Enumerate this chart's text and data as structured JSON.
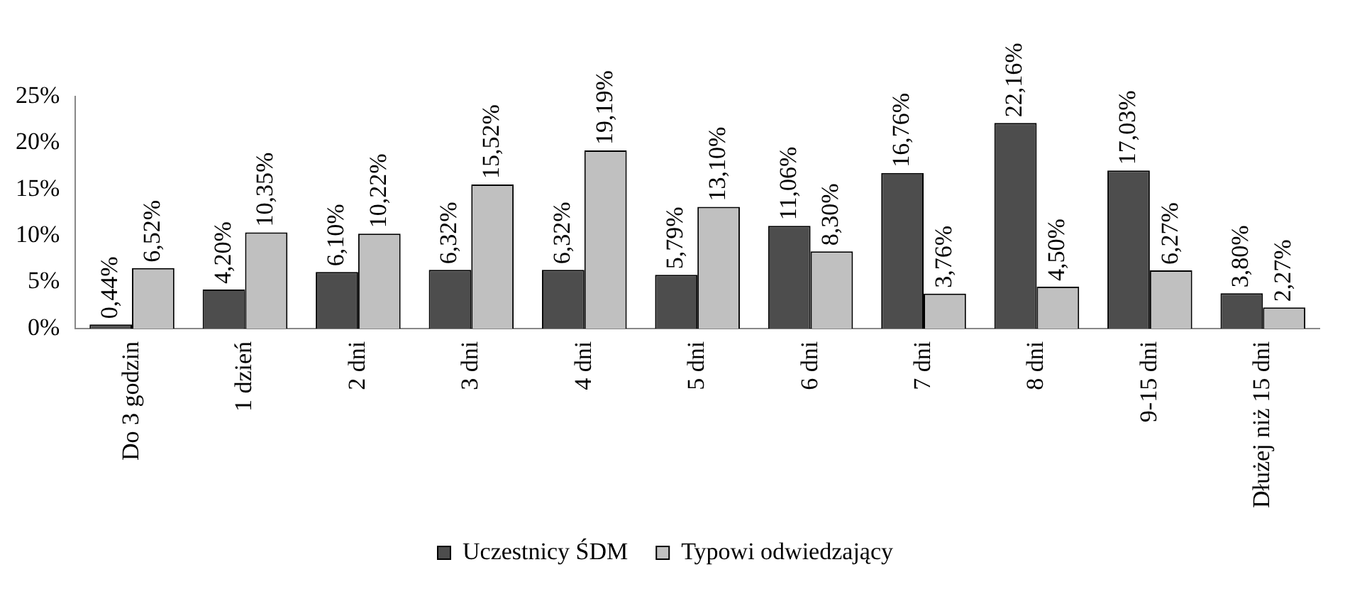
{
  "chart_data": {
    "type": "bar",
    "categories": [
      "Do 3 godzin",
      "1 dzień",
      "2 dni",
      "3 dni",
      "4 dni",
      "5 dni",
      "6 dni",
      "7 dni",
      "8 dni",
      "9-15 dni",
      "Dłużej niż 15 dni"
    ],
    "series": [
      {
        "name": "Uczestnicy ŚDM",
        "color": "#4d4d4d",
        "values": [
          0.44,
          4.2,
          6.1,
          6.32,
          6.32,
          5.79,
          11.06,
          16.76,
          22.16,
          17.03,
          3.8
        ],
        "value_labels": [
          "0,44%",
          "4,20%",
          "6,10%",
          "6,32%",
          "6,32%",
          "5,79%",
          "11,06%",
          "16,76%",
          "22,16%",
          "17,03%",
          "3,80%"
        ]
      },
      {
        "name": "Typowi odwiedzający",
        "color": "#c0c0c0",
        "values": [
          6.52,
          10.35,
          10.22,
          15.52,
          19.19,
          13.1,
          8.3,
          3.76,
          4.5,
          6.27,
          2.27
        ],
        "value_labels": [
          "6,52%",
          "10,35%",
          "10,22%",
          "15,52%",
          "19,19%",
          "13,10%",
          "8,30%",
          "3,76%",
          "4,50%",
          "6,27%",
          "2,27%"
        ]
      }
    ],
    "ylim": [
      0,
      25
    ],
    "yticks": [
      {
        "value": 0,
        "label": "0%"
      },
      {
        "value": 5,
        "label": "5%"
      },
      {
        "value": 10,
        "label": "10%"
      },
      {
        "value": 15,
        "label": "15%"
      },
      {
        "value": 20,
        "label": "20%"
      },
      {
        "value": 25,
        "label": "25%"
      }
    ],
    "grid": false,
    "legend": "bottom"
  }
}
